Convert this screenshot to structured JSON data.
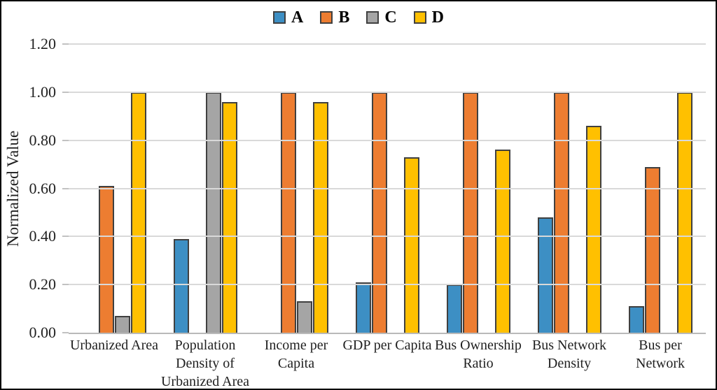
{
  "chart_data": {
    "type": "bar",
    "title": "",
    "xlabel": "",
    "ylabel": "Normalized Value",
    "ylim": [
      0,
      1.2
    ],
    "ytick_labels": [
      "0.00",
      "0.20",
      "0.40",
      "0.60",
      "0.80",
      "1.00",
      "1.20"
    ],
    "grid": true,
    "legend_position": "top-center",
    "categories": [
      "Urbanized Area",
      "Population Density of Urbanized Area",
      "Income per Capita",
      "GDP per Capita",
      "Bus Ownership Ratio",
      "Bus Network Density",
      "Bus per Network"
    ],
    "series": [
      {
        "name": "A",
        "color": "#3d8fc4",
        "values": [
          0.0,
          0.39,
          0.0,
          0.21,
          0.2,
          0.48,
          0.11
        ]
      },
      {
        "name": "B",
        "color": "#ed7d31",
        "values": [
          0.61,
          0.0,
          1.0,
          1.0,
          1.0,
          1.0,
          0.69
        ]
      },
      {
        "name": "C",
        "color": "#a5a5a5",
        "values": [
          0.07,
          1.0,
          0.13,
          0.0,
          0.0,
          0.0,
          0.0
        ]
      },
      {
        "name": "D",
        "color": "#ffc000",
        "values": [
          1.0,
          0.96,
          0.96,
          0.73,
          0.76,
          0.86,
          1.0
        ]
      }
    ],
    "colors": {
      "bar_border": "#404040",
      "gridline": "#d9d9d9",
      "axis_line": "#b9b9b9",
      "text": "#1f1f1f",
      "background": "#ffffff",
      "figure_border": "#000000"
    }
  }
}
